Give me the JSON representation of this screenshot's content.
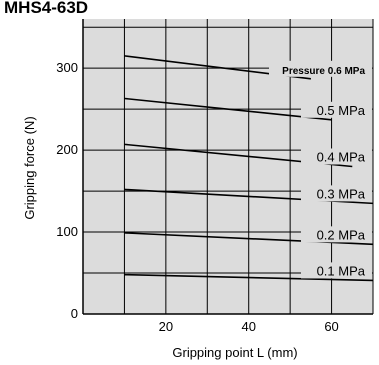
{
  "heading": "MHS4-63D",
  "chart_data": {
    "type": "line",
    "xlabel": "Gripping point  L (mm)",
    "ylabel": "Gripping force  (N)",
    "xlim": [
      0,
      70
    ],
    "ylim": [
      0,
      360
    ],
    "x_ticks": [
      20,
      40,
      60
    ],
    "y_ticks": [
      0,
      100,
      200,
      300
    ],
    "grid": true,
    "series": [
      {
        "name": "Pressure 0.6 MPa",
        "x": [
          10,
          55
        ],
        "y": [
          315,
          287
        ]
      },
      {
        "name": "0.5 MPa",
        "x": [
          10,
          60
        ],
        "y": [
          263,
          237
        ]
      },
      {
        "name": "0.4 MPa",
        "x": [
          10,
          65
        ],
        "y": [
          207,
          180
        ]
      },
      {
        "name": "0.3 MPa",
        "x": [
          10,
          70
        ],
        "y": [
          152,
          135
        ]
      },
      {
        "name": "0.2 MPa",
        "x": [
          10,
          70
        ],
        "y": [
          99,
          85
        ]
      },
      {
        "name": "0.1 MPa",
        "x": [
          10,
          70
        ],
        "y": [
          48,
          41
        ]
      }
    ]
  }
}
